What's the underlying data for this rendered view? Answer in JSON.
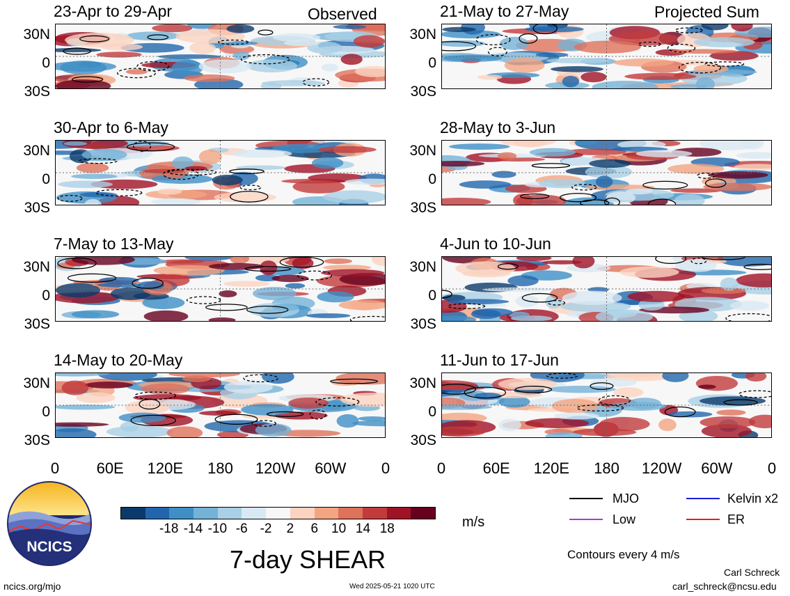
{
  "chart_data": {
    "type": "heatmap",
    "title": "7-day SHEAR",
    "corner_labels": {
      "left": "Observed",
      "right": "Projected Sum"
    },
    "x_ticks": [
      "0",
      "60E",
      "120E",
      "180",
      "120W",
      "60W",
      "0"
    ],
    "y_ticks": [
      "30N",
      "0",
      "30S"
    ],
    "panels": [
      {
        "label": "23-Apr to 29-Apr",
        "group": "Observed"
      },
      {
        "label": "30-Apr to 6-May",
        "group": "Observed"
      },
      {
        "label": "7-May to 13-May",
        "group": "Observed"
      },
      {
        "label": "14-May to 20-May",
        "group": "Observed"
      },
      {
        "label": "21-May to 27-May",
        "group": "Projected Sum"
      },
      {
        "label": "28-May to 3-Jun",
        "group": "Projected Sum"
      },
      {
        "label": "4-Jun to 10-Jun",
        "group": "Projected Sum"
      },
      {
        "label": "11-Jun to 17-Jun",
        "group": "Projected Sum"
      }
    ],
    "colorbar": {
      "ticks": [
        "-18",
        "-14",
        "-10",
        "-6",
        "-2",
        "2",
        "6",
        "10",
        "14",
        "18"
      ],
      "unit": "m/s",
      "colors": [
        "#0a3a6b",
        "#2166ac",
        "#3f8fc5",
        "#74b2d7",
        "#a9d0e5",
        "#d9e9f3",
        "#f7f7f7",
        "#fbd3c0",
        "#f3a582",
        "#de725b",
        "#c23b3c",
        "#a01226",
        "#67001f"
      ]
    },
    "legend": [
      {
        "name": "MJO",
        "color": "#000000"
      },
      {
        "name": "Kelvin x2",
        "color": "#1c1cdc"
      },
      {
        "name": "Low",
        "color": "#a23cdc"
      },
      {
        "name": "ER",
        "color": "#e02020"
      }
    ],
    "contour_note": "Contours every 4 m/s"
  },
  "logo": {
    "text": "NCICS"
  },
  "footer": {
    "url": "ncics.org/mjo",
    "timestamp": "Wed 2025-05-21 1020 UTC",
    "author": "Carl Schreck",
    "email": "carl_schreck@ncsu.edu"
  }
}
